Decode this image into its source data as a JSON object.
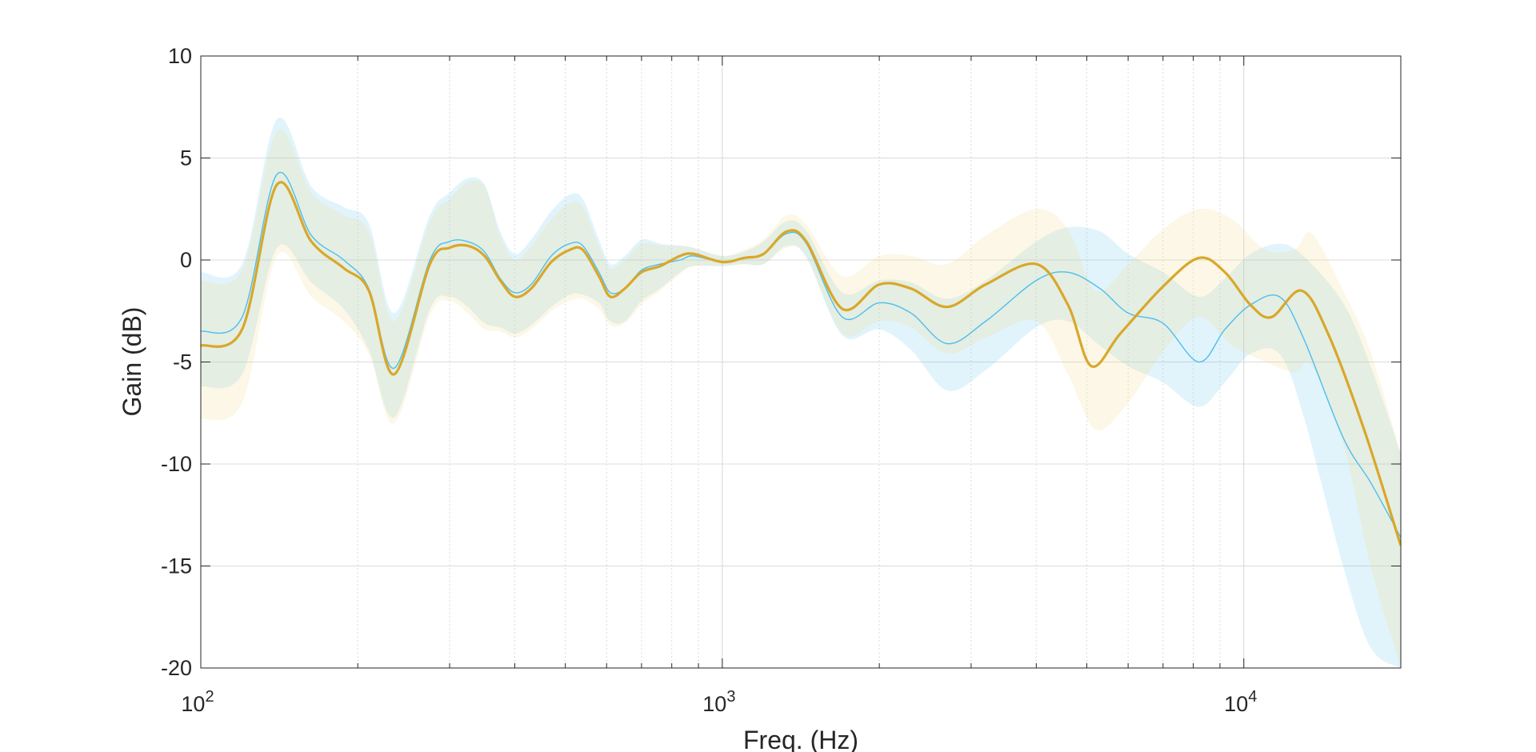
{
  "chart_data": {
    "type": "line",
    "title": "",
    "xlabel": "Freq. (Hz)",
    "ylabel": "Gain (dB)",
    "xscale": "log",
    "xlim": [
      100,
      20000
    ],
    "ylim": [
      -20,
      10
    ],
    "yticks": [
      10,
      5,
      0,
      -5,
      -10,
      -15,
      -20
    ],
    "ytick_labels": [
      "10",
      "5",
      "0",
      "-5",
      "-10",
      "-15",
      "-20"
    ],
    "xticks": [
      {
        "value": 100,
        "base": "10",
        "exp": "2"
      },
      {
        "value": 1000,
        "base": "10",
        "exp": "3"
      },
      {
        "value": 10000,
        "base": "10",
        "exp": "4"
      }
    ],
    "grid": true,
    "legend": "none",
    "series": [
      {
        "color": "#4dbeee",
        "line_width": "thin",
        "band_color": "#4dbeee",
        "points": [
          [
            100,
            -3.5
          ],
          [
            120,
            -2.8
          ],
          [
            140,
            4.2
          ],
          [
            163,
            1.2
          ],
          [
            188,
            0.0
          ],
          [
            210,
            -1.4
          ],
          [
            235,
            -5.3
          ],
          [
            275,
            0.0
          ],
          [
            300,
            0.9
          ],
          [
            325,
            0.9
          ],
          [
            350,
            0.4
          ],
          [
            375,
            -0.9
          ],
          [
            400,
            -1.6
          ],
          [
            430,
            -1.2
          ],
          [
            470,
            0.2
          ],
          [
            510,
            0.8
          ],
          [
            540,
            0.7
          ],
          [
            580,
            -0.6
          ],
          [
            610,
            -1.6
          ],
          [
            650,
            -1.4
          ],
          [
            700,
            -0.5
          ],
          [
            760,
            -0.2
          ],
          [
            830,
            0.0
          ],
          [
            880,
            0.2
          ],
          [
            1000,
            -0.1
          ],
          [
            1100,
            0.1
          ],
          [
            1200,
            0.3
          ],
          [
            1330,
            1.3
          ],
          [
            1450,
            0.8
          ],
          [
            1700,
            -2.8
          ],
          [
            2000,
            -2.1
          ],
          [
            2300,
            -2.6
          ],
          [
            2700,
            -4.1
          ],
          [
            3200,
            -3.0
          ],
          [
            4000,
            -1.0
          ],
          [
            4600,
            -0.6
          ],
          [
            5300,
            -1.4
          ],
          [
            6000,
            -2.6
          ],
          [
            7000,
            -3.1
          ],
          [
            8200,
            -5.0
          ],
          [
            9200,
            -3.4
          ],
          [
            10300,
            -2.2
          ],
          [
            11700,
            -1.8
          ],
          [
            13000,
            -3.8
          ],
          [
            15500,
            -8.7
          ],
          [
            17500,
            -10.9
          ],
          [
            20000,
            -13.6
          ]
        ],
        "band_upper": [
          [
            100,
            -0.6
          ],
          [
            120,
            -0.2
          ],
          [
            140,
            6.9
          ],
          [
            163,
            3.6
          ],
          [
            188,
            2.6
          ],
          [
            210,
            1.8
          ],
          [
            235,
            -2.6
          ],
          [
            275,
            2.2
          ],
          [
            300,
            3.3
          ],
          [
            325,
            4.0
          ],
          [
            350,
            3.7
          ],
          [
            375,
            1.4
          ],
          [
            400,
            0.3
          ],
          [
            430,
            1.0
          ],
          [
            470,
            2.4
          ],
          [
            510,
            3.2
          ],
          [
            540,
            3.0
          ],
          [
            580,
            1.0
          ],
          [
            610,
            -0.2
          ],
          [
            650,
            0.2
          ],
          [
            700,
            1.0
          ],
          [
            760,
            0.8
          ],
          [
            830,
            0.7
          ],
          [
            880,
            0.6
          ],
          [
            1000,
            0.2
          ],
          [
            1100,
            0.4
          ],
          [
            1200,
            0.9
          ],
          [
            1330,
            1.9
          ],
          [
            1450,
            1.4
          ],
          [
            1700,
            -1.6
          ],
          [
            2000,
            -1.0
          ],
          [
            2300,
            -1.1
          ],
          [
            2700,
            -1.9
          ],
          [
            3200,
            -1.0
          ],
          [
            4000,
            0.9
          ],
          [
            4600,
            1.6
          ],
          [
            5300,
            1.4
          ],
          [
            6000,
            0.3
          ],
          [
            7000,
            -0.6
          ],
          [
            8200,
            -1.8
          ],
          [
            9200,
            -0.9
          ],
          [
            10300,
            0.3
          ],
          [
            11700,
            0.8
          ],
          [
            13000,
            0.2
          ],
          [
            15500,
            -2.1
          ],
          [
            17500,
            -5.2
          ],
          [
            20000,
            -9.5
          ]
        ],
        "band_lower": [
          [
            100,
            -6.2
          ],
          [
            120,
            -5.6
          ],
          [
            140,
            0.6
          ],
          [
            163,
            -1.1
          ],
          [
            188,
            -2.4
          ],
          [
            210,
            -4.4
          ],
          [
            235,
            -7.7
          ],
          [
            275,
            -2.4
          ],
          [
            300,
            -1.8
          ],
          [
            325,
            -2.3
          ],
          [
            350,
            -3.1
          ],
          [
            375,
            -3.3
          ],
          [
            400,
            -3.6
          ],
          [
            430,
            -3.2
          ],
          [
            470,
            -2.3
          ],
          [
            510,
            -1.7
          ],
          [
            540,
            -1.7
          ],
          [
            580,
            -2.1
          ],
          [
            610,
            -3.0
          ],
          [
            650,
            -3.0
          ],
          [
            700,
            -2.0
          ],
          [
            760,
            -1.4
          ],
          [
            830,
            -0.6
          ],
          [
            880,
            -0.3
          ],
          [
            1000,
            -0.3
          ],
          [
            1100,
            -0.2
          ],
          [
            1200,
            -0.2
          ],
          [
            1330,
            0.7
          ],
          [
            1450,
            0.1
          ],
          [
            1700,
            -3.7
          ],
          [
            2000,
            -3.4
          ],
          [
            2300,
            -4.4
          ],
          [
            2700,
            -6.4
          ],
          [
            3200,
            -5.4
          ],
          [
            4000,
            -3.3
          ],
          [
            4600,
            -3.0
          ],
          [
            5300,
            -4.2
          ],
          [
            6000,
            -5.2
          ],
          [
            7000,
            -6.0
          ],
          [
            8200,
            -7.2
          ],
          [
            9200,
            -6.0
          ],
          [
            10300,
            -4.6
          ],
          [
            11700,
            -4.6
          ],
          [
            13000,
            -7.6
          ],
          [
            15500,
            -15.0
          ],
          [
            17500,
            -19.0
          ],
          [
            20000,
            -20.0
          ]
        ]
      },
      {
        "color": "#d9a72a",
        "line_width": "thick",
        "band_color": "#f2dc8c",
        "points": [
          [
            100,
            -4.2
          ],
          [
            120,
            -3.4
          ],
          [
            140,
            3.7
          ],
          [
            163,
            0.9
          ],
          [
            188,
            -0.4
          ],
          [
            210,
            -1.5
          ],
          [
            235,
            -5.6
          ],
          [
            275,
            -0.2
          ],
          [
            300,
            0.6
          ],
          [
            325,
            0.7
          ],
          [
            350,
            0.2
          ],
          [
            375,
            -1.0
          ],
          [
            400,
            -1.8
          ],
          [
            430,
            -1.4
          ],
          [
            470,
            -0.1
          ],
          [
            510,
            0.5
          ],
          [
            540,
            0.5
          ],
          [
            580,
            -0.8
          ],
          [
            610,
            -1.8
          ],
          [
            650,
            -1.4
          ],
          [
            700,
            -0.6
          ],
          [
            760,
            -0.3
          ],
          [
            830,
            0.2
          ],
          [
            880,
            0.3
          ],
          [
            1000,
            -0.1
          ],
          [
            1100,
            0.1
          ],
          [
            1200,
            0.3
          ],
          [
            1330,
            1.4
          ],
          [
            1450,
            0.9
          ],
          [
            1700,
            -2.4
          ],
          [
            2000,
            -1.2
          ],
          [
            2300,
            -1.4
          ],
          [
            2700,
            -2.3
          ],
          [
            3200,
            -1.2
          ],
          [
            4000,
            -0.2
          ],
          [
            4600,
            -2.2
          ],
          [
            5100,
            -5.2
          ],
          [
            5800,
            -3.6
          ],
          [
            7000,
            -1.3
          ],
          [
            8200,
            0.1
          ],
          [
            9200,
            -0.6
          ],
          [
            10300,
            -2.2
          ],
          [
            11300,
            -2.8
          ],
          [
            12900,
            -1.5
          ],
          [
            14500,
            -3.6
          ],
          [
            17000,
            -8.3
          ],
          [
            20000,
            -14.0
          ]
        ],
        "band_upper": [
          [
            100,
            -1.0
          ],
          [
            120,
            -0.5
          ],
          [
            140,
            6.3
          ],
          [
            163,
            3.3
          ],
          [
            188,
            2.2
          ],
          [
            210,
            1.4
          ],
          [
            235,
            -3.0
          ],
          [
            275,
            1.9
          ],
          [
            300,
            3.0
          ],
          [
            325,
            3.8
          ],
          [
            350,
            3.6
          ],
          [
            375,
            1.2
          ],
          [
            400,
            0.0
          ],
          [
            430,
            0.7
          ],
          [
            470,
            2.0
          ],
          [
            510,
            2.8
          ],
          [
            540,
            2.6
          ],
          [
            580,
            0.7
          ],
          [
            610,
            -0.4
          ],
          [
            650,
            0.0
          ],
          [
            700,
            0.8
          ],
          [
            760,
            0.7
          ],
          [
            830,
            0.7
          ],
          [
            880,
            0.6
          ],
          [
            1000,
            0.2
          ],
          [
            1100,
            0.5
          ],
          [
            1200,
            1.0
          ],
          [
            1330,
            2.2
          ],
          [
            1450,
            1.7
          ],
          [
            1700,
            -0.8
          ],
          [
            2000,
            0.2
          ],
          [
            2300,
            0.2
          ],
          [
            2700,
            -0.2
          ],
          [
            3200,
            1.2
          ],
          [
            4000,
            2.5
          ],
          [
            4600,
            1.5
          ],
          [
            5200,
            -1.5
          ],
          [
            6000,
            -0.2
          ],
          [
            7000,
            1.5
          ],
          [
            8200,
            2.5
          ],
          [
            9500,
            2.0
          ],
          [
            11000,
            0.5
          ],
          [
            12500,
            0.5
          ],
          [
            13500,
            1.3
          ],
          [
            15500,
            -1.5
          ],
          [
            17500,
            -4.5
          ],
          [
            20000,
            -9.5
          ]
        ],
        "band_lower": [
          [
            100,
            -7.8
          ],
          [
            120,
            -7.0
          ],
          [
            140,
            0.2
          ],
          [
            163,
            -1.8
          ],
          [
            188,
            -3.0
          ],
          [
            210,
            -4.6
          ],
          [
            235,
            -8.0
          ],
          [
            275,
            -2.7
          ],
          [
            300,
            -2.0
          ],
          [
            325,
            -2.6
          ],
          [
            350,
            -3.4
          ],
          [
            375,
            -3.5
          ],
          [
            400,
            -3.8
          ],
          [
            430,
            -3.4
          ],
          [
            470,
            -2.5
          ],
          [
            510,
            -2.0
          ],
          [
            540,
            -1.9
          ],
          [
            580,
            -2.4
          ],
          [
            610,
            -3.2
          ],
          [
            650,
            -3.1
          ],
          [
            700,
            -2.2
          ],
          [
            760,
            -1.5
          ],
          [
            830,
            -0.7
          ],
          [
            880,
            -0.3
          ],
          [
            1000,
            -0.3
          ],
          [
            1100,
            -0.2
          ],
          [
            1200,
            -0.2
          ],
          [
            1330,
            0.6
          ],
          [
            1450,
            0.2
          ],
          [
            1700,
            -3.6
          ],
          [
            2000,
            -3.0
          ],
          [
            2300,
            -3.3
          ],
          [
            2700,
            -4.6
          ],
          [
            3200,
            -3.8
          ],
          [
            4000,
            -3.0
          ],
          [
            4600,
            -5.6
          ],
          [
            5200,
            -8.3
          ],
          [
            6000,
            -7.0
          ],
          [
            7000,
            -4.5
          ],
          [
            8200,
            -2.8
          ],
          [
            9500,
            -4.2
          ],
          [
            11000,
            -5.0
          ],
          [
            12500,
            -5.5
          ],
          [
            13500,
            -5.2
          ],
          [
            15500,
            -9.0
          ],
          [
            17500,
            -15.0
          ],
          [
            20000,
            -20.0
          ]
        ]
      }
    ]
  }
}
